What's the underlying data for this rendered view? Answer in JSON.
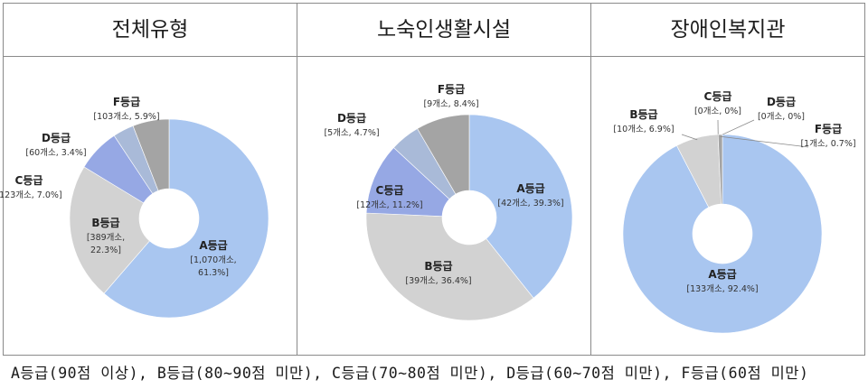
{
  "titles": [
    "전체유형",
    "노숙인생활시설",
    "장애인복지관"
  ],
  "footnote": "A등급(90점 이상), B등급(80~90점 미만), C등급(70~80점 미만), D등급(60~70점 미만), F등급(60점 미만)",
  "colors": {
    "A": "#a9c6f0",
    "B": "#d2d2d2",
    "C": "#96a8e4",
    "D": "#a9bad8",
    "F": "#a4a4a4"
  },
  "chart_data": [
    {
      "type": "pie",
      "title": "전체유형",
      "slices": [
        {
          "key": "A",
          "name": "A등급",
          "count_label": "[1,070개소,",
          "pct_label": "61.3%]",
          "value": 61.3
        },
        {
          "key": "B",
          "name": "B등급",
          "count_label": "[389개소,",
          "pct_label": "22.3%]",
          "value": 22.3
        },
        {
          "key": "C",
          "name": "C등급",
          "count_label": "[123개소, 7.0%]",
          "value": 7.0
        },
        {
          "key": "D",
          "name": "D등급",
          "count_label": "[60개소, 3.4%]",
          "value": 3.4
        },
        {
          "key": "F",
          "name": "F등급",
          "count_label": "[103개소, 5.9%]",
          "value": 5.9
        }
      ]
    },
    {
      "type": "pie",
      "title": "노숙인생활시설",
      "slices": [
        {
          "key": "A",
          "name": "A등급",
          "count_label": "[42개소, 39.3%]",
          "value": 39.3
        },
        {
          "key": "B",
          "name": "B등급",
          "count_label": "[39개소, 36.4%]",
          "value": 36.4
        },
        {
          "key": "C",
          "name": "C등급",
          "count_label": "[12개소, 11.2%]",
          "value": 11.2
        },
        {
          "key": "D",
          "name": "D등급",
          "count_label": "[5개소, 4.7%]",
          "value": 4.7
        },
        {
          "key": "F",
          "name": "F등급",
          "count_label": "[9개소, 8.4%]",
          "value": 8.4
        }
      ]
    },
    {
      "type": "pie",
      "title": "장애인복지관",
      "slices": [
        {
          "key": "A",
          "name": "A등급",
          "count_label": "[133개소, 92.4%]",
          "value": 92.4
        },
        {
          "key": "B",
          "name": "B등급",
          "count_label": "[10개소, 6.9%]",
          "value": 6.9
        },
        {
          "key": "C",
          "name": "C등급",
          "count_label": "[0개소, 0%]",
          "value": 0
        },
        {
          "key": "D",
          "name": "D등급",
          "count_label": "[0개소, 0%]",
          "value": 0
        },
        {
          "key": "F",
          "name": "F등급",
          "count_label": "[1개소, 0.7%]",
          "value": 0.7
        }
      ]
    }
  ]
}
